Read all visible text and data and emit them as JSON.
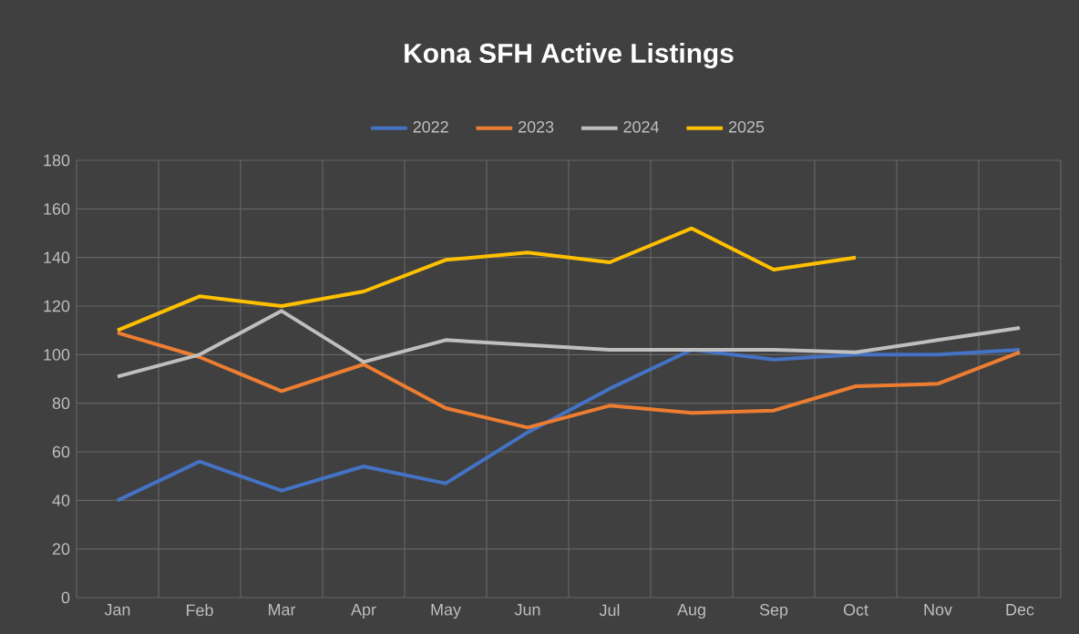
{
  "chart_data": {
    "type": "line",
    "title": "Kona SFH Active Listings",
    "categories": [
      "Jan",
      "Feb",
      "Mar",
      "Apr",
      "May",
      "Jun",
      "Jul",
      "Aug",
      "Sep",
      "Oct",
      "Nov",
      "Dec"
    ],
    "series": [
      {
        "name": "2022",
        "color": "#4472c4",
        "values": [
          40,
          56,
          44,
          54,
          47,
          68,
          86,
          102,
          98,
          100,
          100,
          102
        ]
      },
      {
        "name": "2023",
        "color": "#ed7d31",
        "values": [
          109,
          99,
          85,
          96,
          78,
          70,
          79,
          76,
          77,
          87,
          88,
          101
        ]
      },
      {
        "name": "2024",
        "color": "#bfbfbf",
        "values": [
          91,
          100,
          118,
          97,
          106,
          104,
          102,
          102,
          102,
          101,
          106,
          111
        ]
      },
      {
        "name": "2025",
        "color": "#ffc000",
        "values": [
          110,
          124,
          120,
          126,
          139,
          142,
          138,
          152,
          135,
          140,
          null,
          null
        ]
      }
    ],
    "ylim": [
      0,
      180
    ],
    "yticks": [
      0,
      20,
      40,
      60,
      80,
      100,
      120,
      140,
      160,
      180
    ],
    "grid": true,
    "legend": "top",
    "marker": "none",
    "line_style": "solid"
  }
}
